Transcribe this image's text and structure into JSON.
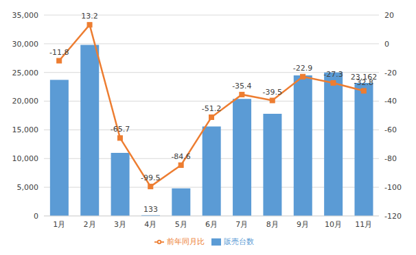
{
  "chart_data": {
    "type": "bar",
    "categories": [
      "1月",
      "2月",
      "3月",
      "4月",
      "5月",
      "6月",
      "7月",
      "8月",
      "9月",
      "10月",
      "11月"
    ],
    "series": [
      {
        "name": "販売台数",
        "type": "bar",
        "color": "#5B9BD5",
        "values": [
          23700,
          29800,
          11000,
          133,
          4800,
          15600,
          20400,
          17800,
          24500,
          25000,
          23162
        ],
        "value_labels": [
          null,
          null,
          null,
          "133",
          null,
          null,
          null,
          null,
          null,
          null,
          "23,162"
        ]
      },
      {
        "name": "前年同月比",
        "type": "line",
        "axis": "y2",
        "color": "#ED7D31",
        "marker": "square",
        "values": [
          -11.8,
          13.2,
          -65.7,
          -99.5,
          -84.6,
          -51.2,
          -35.4,
          -39.5,
          -22.9,
          -27.3,
          -32.8
        ]
      }
    ],
    "ylim": [
      0,
      35000
    ],
    "yticks": [
      0,
      {
        "value": 5000,
        "label": "5,000"
      },
      {
        "value": 10000,
        "label": "10,000"
      },
      {
        "value": 15000,
        "label": "15,000"
      },
      {
        "value": 20000,
        "label": "20,000"
      },
      {
        "value": 25000,
        "label": "25,000"
      },
      {
        "value": 30000,
        "label": "30,000"
      },
      {
        "value": 35000,
        "label": "35,000"
      }
    ],
    "y2lim": [
      -120,
      20
    ],
    "y2ticks": [
      -120,
      -100,
      -80,
      -60,
      -40,
      -20,
      0,
      20
    ],
    "grid": true,
    "legend": "bottom",
    "data_labels": true
  }
}
